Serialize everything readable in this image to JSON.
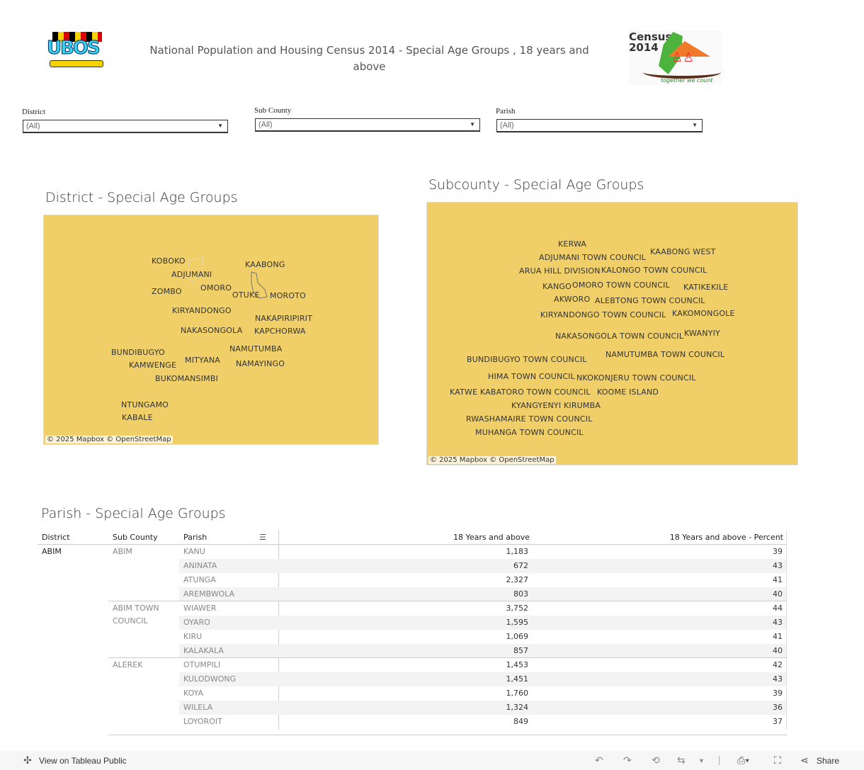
{
  "header": {
    "title": "National Population and Housing Census 2014 - Special Age Groups , 18 years and above",
    "logo_left": "UBOS",
    "logo_right": "Census 2014",
    "logo_right_tagline": "together we count"
  },
  "filters": [
    {
      "label": "District",
      "value": "(All)"
    },
    {
      "label": "Sub County",
      "value": "(All)"
    },
    {
      "label": "Parish",
      "value": "(All)"
    }
  ],
  "district_map": {
    "title": "District - Special Age Groups",
    "fill": "#f0cf69",
    "attribution": "© 2025 Mapbox  © OpenStreetMap",
    "labels": [
      "KOBOKO",
      "ADJUMANI",
      "KAABONG",
      "ZOMBO",
      "OMORO",
      "OTUKE",
      "MOROTO",
      "KIRYANDONGO",
      "NAKAPIRIPIRIT",
      "NAKASONGOLA",
      "KAPCHORWA",
      "BUNDIBUGYO",
      "NAMUTUMBA",
      "KAMWENGE",
      "MITYANA",
      "NAMAYINGO",
      "BUKOMANSIMBI",
      "NTUNGAMO",
      "KABALE"
    ]
  },
  "subcounty_map": {
    "title": "Subcounty - Special Age Groups",
    "fill": "#f0cf69",
    "attribution": "© 2025 Mapbox  © OpenStreetMap",
    "labels": [
      "KERWA",
      "ADJUMANI TOWN COUNCIL",
      "KAABONG WEST",
      "ARUA HILL DIVISION",
      "KALONGO TOWN COUNCIL",
      "KANGO",
      "OMORO TOWN COUNCIL",
      "KATIKEKILE",
      "AKWORO",
      "ALEBTONG TOWN COUNCIL",
      "KIRYANDONGO TOWN COUNCIL",
      "KAKOMONGOLE",
      "NAKASONGOLA TOWN COUNCIL",
      "KWANYIY",
      "BUNDIBUGYO TOWN COUNCIL",
      "NAMUTUMBA TOWN COUNCIL",
      "HIMA TOWN COUNCIL",
      "NKOKONJERU TOWN COUNCIL",
      "KATWE KABATORO TOWN COUNCIL",
      "KOOME ISLAND",
      "KYANGYENYI KIRUMBA",
      "RWASHAMAIRE TOWN COUNCIL",
      "MUHANGA TOWN COUNCIL"
    ]
  },
  "parish_table": {
    "title": "Parish - Special Age Groups",
    "columns": [
      "District",
      "Sub County",
      "Parish",
      "18 Years and above",
      "18 Years and above - Percent"
    ],
    "district": "ABIM",
    "groups": [
      {
        "subcounty": "ABIM",
        "rows": [
          [
            "KANU",
            "1,183",
            "39"
          ],
          [
            "ANINATA",
            "672",
            "43"
          ],
          [
            "ATUNGA",
            "2,327",
            "41"
          ],
          [
            "AREMBWOLA",
            "803",
            "40"
          ]
        ]
      },
      {
        "subcounty": "ABIM TOWN COUNCIL",
        "rows": [
          [
            "WIAWER",
            "3,752",
            "44"
          ],
          [
            "OYARO",
            "1,595",
            "43"
          ],
          [
            "KIRU",
            "1,069",
            "41"
          ],
          [
            "KALAKALA",
            "857",
            "40"
          ]
        ]
      },
      {
        "subcounty": "ALEREK",
        "rows": [
          [
            "OTUMPILI",
            "1,453",
            "42"
          ],
          [
            "KULODWONG",
            "1,451",
            "43"
          ],
          [
            "KOYA",
            "1,760",
            "39"
          ],
          [
            "WILELA",
            "1,324",
            "36"
          ],
          [
            "LOYOROIT",
            "849",
            "37"
          ]
        ]
      }
    ]
  },
  "footer": {
    "view_label": "View on Tableau Public",
    "share_label": "Share"
  }
}
